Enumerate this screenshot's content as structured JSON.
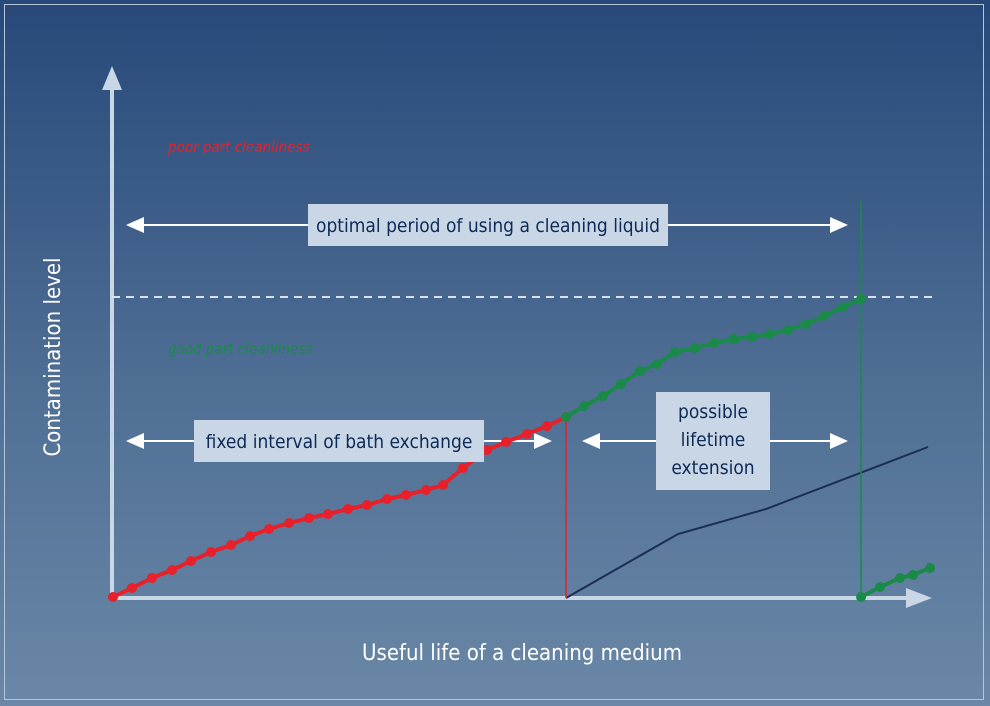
{
  "diagram": {
    "y_axis_label": "Contamination level",
    "x_axis_label": "Useful life of a cleaning medium",
    "zone_poor": "poor part cleanliness",
    "zone_good": "good part cleanliness",
    "box_optimal": "optimal period of using a cleaning liquid",
    "box_fixed": "fixed interval of bath exchange",
    "box_extension": [
      "possible",
      "lifetime",
      "extension"
    ]
  },
  "colors": {
    "background_top": "#28487a",
    "background_bottom": "#6a87a6",
    "red_curve": "#e8202a",
    "green_curve": "#1a8a48",
    "dark_line": "#1a2d55",
    "label_box": "#c8d6e6",
    "arrow": "#ffffff"
  }
}
